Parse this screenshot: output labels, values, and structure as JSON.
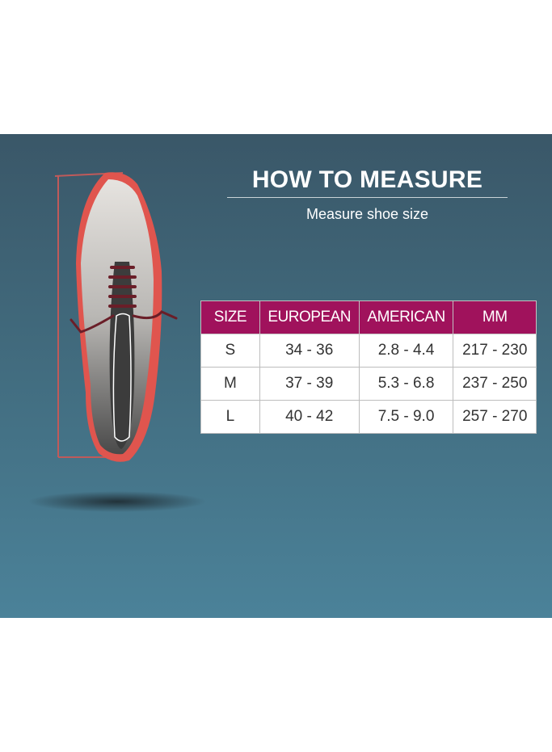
{
  "heading": {
    "title": "HOW TO MEASURE",
    "subtitle": "Measure shoe size"
  },
  "table": {
    "headers": [
      "SIZE",
      "EUROPEAN",
      "AMERICAN",
      "MM"
    ],
    "rows": [
      [
        "S",
        "34 - 36",
        "2.8 - 4.4",
        "217 - 230"
      ],
      [
        "M",
        "37 - 39",
        "5.3 - 6.8",
        "237 - 250"
      ],
      [
        "L",
        "40 - 42",
        "7.5 - 9.0",
        "257 - 270"
      ]
    ]
  },
  "colors": {
    "header": "#a0125c",
    "background": "#426d80",
    "shoe_sole": "#e0554e"
  }
}
